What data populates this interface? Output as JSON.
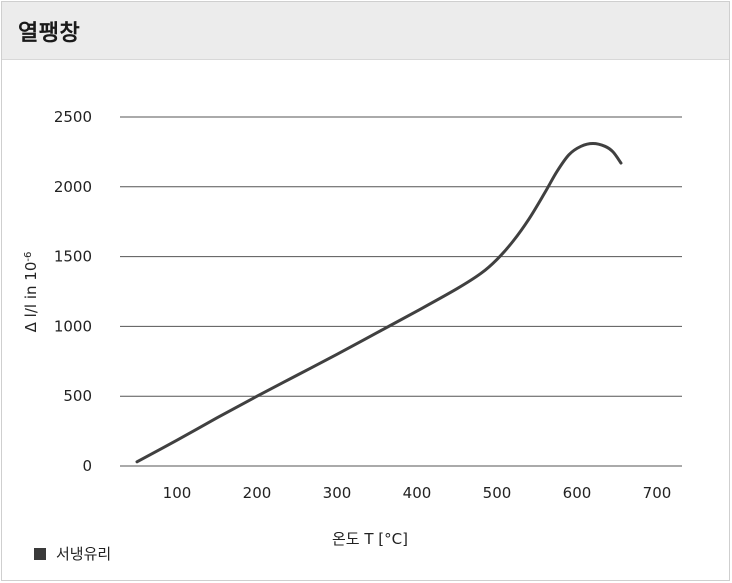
{
  "header": {
    "title": "열팽창"
  },
  "chart_data": {
    "type": "line",
    "title": "열팽창",
    "xlabel": "온도 T [°C]",
    "ylabel": "Δ l/l in 10",
    "ylabel_superscript": "-6",
    "xlim": [
      30,
      700
    ],
    "ylim": [
      0,
      2500
    ],
    "xticks": [
      100,
      200,
      300,
      400,
      500,
      600,
      700
    ],
    "yticks": [
      0,
      500,
      1000,
      1500,
      2000,
      2500
    ],
    "grid": "horizontal",
    "legend_position": "bottom-left",
    "series": [
      {
        "name": "서냉유리",
        "color": "#404040",
        "x": [
          50,
          100,
          150,
          200,
          250,
          300,
          350,
          400,
          450,
          480,
          500,
          520,
          540,
          560,
          575,
          590,
          605,
          620,
          635,
          645,
          655
        ],
        "y": [
          30,
          185,
          345,
          500,
          650,
          800,
          955,
          1110,
          1270,
          1380,
          1480,
          1610,
          1770,
          1960,
          2110,
          2230,
          2290,
          2310,
          2290,
          2250,
          2170
        ]
      }
    ]
  }
}
